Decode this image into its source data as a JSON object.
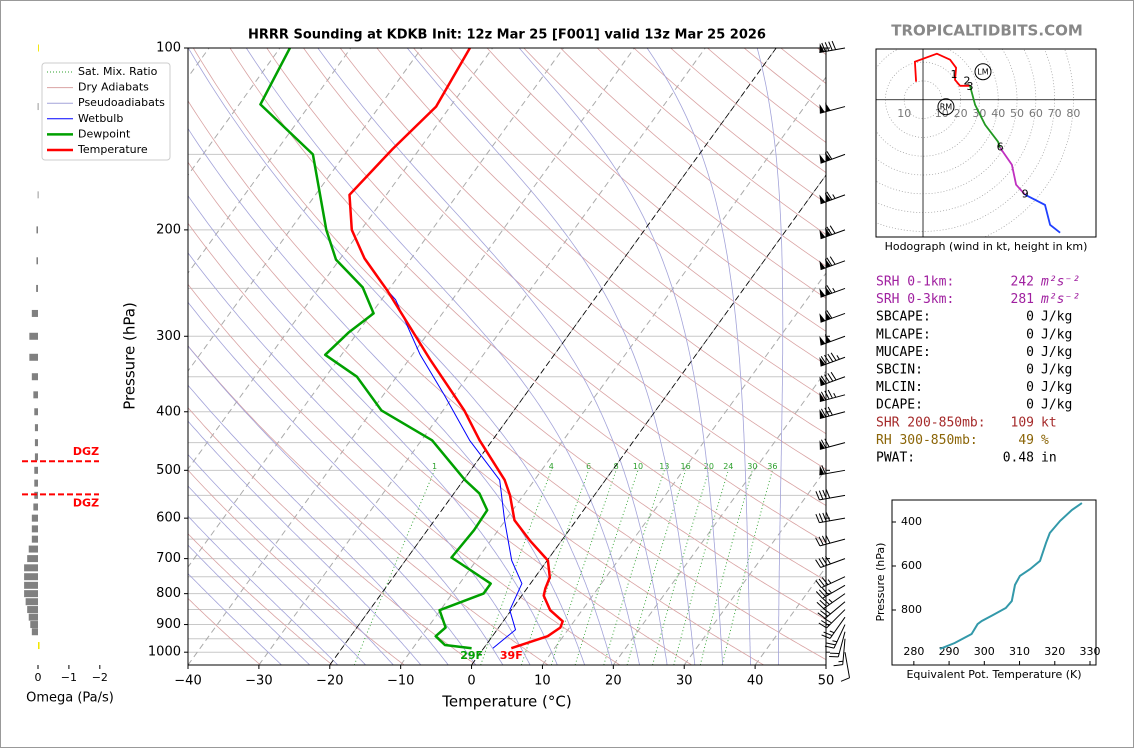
{
  "header": {
    "watermark": "TROPICALTIDBITS.COM"
  },
  "chart_data": [
    {
      "type": "skewt",
      "title": "HRRR Sounding at KDKB Init: 12z Mar 25 [F001] valid 13z Mar 25 2026",
      "x_label": "Temperature (°C)",
      "y_label": "Pressure (hPa)",
      "xlim": [
        -40,
        50
      ],
      "ylim": [
        1050,
        100
      ],
      "y_scale": "log",
      "grid": true,
      "legend": "upper left",
      "xticks": [
        {
          "value": -40,
          "label": "−40"
        },
        {
          "value": -30,
          "label": "−30"
        },
        {
          "value": -20,
          "label": "−20"
        },
        {
          "value": -10,
          "label": "−10"
        },
        0,
        10,
        20,
        30,
        40,
        50
      ],
      "yticks": [
        100,
        200,
        300,
        400,
        500,
        600,
        700,
        800,
        900,
        1000
      ],
      "highlighted_isotherms": [
        -20,
        0
      ],
      "series": [
        {
          "name": "Sat. Mix. Ratio",
          "kind": "mixing_ratio",
          "color": "#2ca02c",
          "levels": [
            1,
            4,
            6,
            8,
            10,
            13,
            16,
            20,
            24,
            30,
            36
          ]
        },
        {
          "name": "Dry Adiabats",
          "kind": "dry_adiabat",
          "color": "#d9a3a3"
        },
        {
          "name": "Pseudoadiabats",
          "kind": "moist_adiabat",
          "color": "#a3a3d9"
        },
        {
          "name": "Wetbulb",
          "kind": "profile",
          "color": "#0000ff",
          "linewidth": 1,
          "pressure": [
            985,
            918,
            852,
            770,
            705,
            605,
            519,
            446,
            376,
            322,
            261,
            252
          ],
          "values": [
            1.3,
            2.6,
            -0.2,
            -1.2,
            -5.0,
            -10.1,
            -14.9,
            -23.2,
            -31.3,
            -38.9,
            -48.0,
            -50.1
          ]
        },
        {
          "name": "Dewpoint",
          "kind": "profile",
          "color": "#00a000",
          "linewidth": 2.5,
          "surface_label": "29F",
          "pressure": [
            985,
            973,
            941,
            910,
            852,
            800,
            770,
            697,
            628,
            582,
            546,
            519,
            446,
            398,
            350,
            322,
            296,
            275,
            249,
            224,
            200,
            150,
            124,
            100
          ],
          "values": [
            -1.7,
            -5.8,
            -8.0,
            -7.5,
            -10.1,
            -5.6,
            -5.6,
            -13.8,
            -13.4,
            -13.6,
            -16.4,
            -19.8,
            -28.5,
            -38.7,
            -45.6,
            -52.3,
            -51.3,
            -49.7,
            -53.9,
            -60.5,
            -64.9,
            -74.5,
            -87.0,
            -88.6
          ]
        },
        {
          "name": "Temperature",
          "kind": "profile",
          "color": "#ff0000",
          "linewidth": 2.5,
          "surface_label": "39F",
          "pressure": [
            985,
            941,
            910,
            889,
            852,
            806,
            784,
            752,
            705,
            653,
            605,
            550,
            519,
            446,
            398,
            328,
            252,
            223,
            200,
            175,
            147,
            125,
            100
          ],
          "values": [
            3.9,
            7.8,
            8.7,
            8.4,
            5.5,
            3.1,
            2.6,
            2.1,
            0.1,
            -4.5,
            -8.7,
            -11.9,
            -14.2,
            -21.8,
            -27.0,
            -37.0,
            -50.1,
            -56.6,
            -61.3,
            -65.2,
            -63.8,
            -62.0,
            -63.2
          ]
        }
      ],
      "wind_barbs": {
        "pressure": [
          1000,
          950,
          925,
          900,
          875,
          850,
          825,
          800,
          775,
          750,
          700,
          650,
          600,
          550,
          500,
          450,
          400,
          375,
          350,
          325,
          300,
          275,
          250,
          225,
          200,
          175,
          150,
          125,
          100
        ],
        "direction": [
          170,
          185,
          195,
          205,
          215,
          225,
          230,
          235,
          240,
          245,
          250,
          255,
          260,
          260,
          260,
          255,
          255,
          255,
          250,
          250,
          250,
          250,
          250,
          250,
          250,
          250,
          250,
          255,
          260
        ],
        "speed": [
          10,
          15,
          20,
          25,
          25,
          30,
          30,
          35,
          35,
          35,
          40,
          40,
          40,
          40,
          60,
          70,
          80,
          85,
          90,
          95,
          100,
          110,
          115,
          120,
          120,
          115,
          110,
          100,
          90
        ]
      }
    },
    {
      "type": "hbar",
      "x_label": "Omega (Pa/s)",
      "xlim": [
        0.55,
        -2.2
      ],
      "ylim": [
        1050,
        100
      ],
      "y_scale": "log",
      "xticks": [
        0,
        {
          "value": -1,
          "label": "−1"
        },
        {
          "value": -2,
          "label": "−2"
        }
      ],
      "color": "#808080",
      "negative_color": "#f2e600",
      "y": [
        100,
        125,
        175,
        200,
        225,
        250,
        275,
        300,
        325,
        350,
        375,
        400,
        425,
        450,
        475,
        500,
        525,
        550,
        575,
        600,
        625,
        650,
        675,
        700,
        725,
        750,
        775,
        800,
        825,
        850,
        875,
        900,
        925,
        975
      ],
      "values": [
        -0.03,
        0.01,
        0.01,
        0.05,
        0.05,
        0.06,
        0.2,
        0.28,
        0.28,
        0.2,
        0.15,
        0.12,
        0.1,
        0.1,
        0.1,
        0.12,
        0.12,
        0.12,
        0.15,
        0.2,
        0.2,
        0.2,
        0.3,
        0.35,
        0.45,
        0.45,
        0.45,
        0.45,
        0.4,
        0.35,
        0.3,
        0.25,
        0.2,
        -0.05
      ],
      "dgz": {
        "color": "#ff0000",
        "pressure": [
          483,
          548
        ],
        "labels": [
          "DGZ",
          "DGZ"
        ]
      }
    },
    {
      "type": "hodograph",
      "caption": "Hodograph (wind in kt, height in km)",
      "xlim": [
        -25,
        92
      ],
      "ylim": [
        -73,
        27
      ],
      "rings": [
        10,
        20,
        30,
        40,
        50,
        60,
        70,
        80
      ],
      "segments": [
        {
          "color": "#ff0000",
          "u": [
            -3.7,
            -4.3,
            7.4,
            14.4,
            17.6,
            17,
            19.7,
            25
          ],
          "v": [
            9.6,
            20.2,
            24.5,
            21.3,
            17,
            10.6,
            7.4,
            7.4
          ]
        },
        {
          "color": "#229922",
          "u": [
            25,
            27.7,
            33,
            39.9,
            41
          ],
          "v": [
            7.4,
            -2.7,
            -13.3,
            -22.3,
            -25.5
          ]
        },
        {
          "color": "#c030c0",
          "u": [
            41,
            47.3,
            49.5,
            54.3
          ],
          "v": [
            -25.5,
            -34.6,
            -45.2,
            -50.5
          ]
        },
        {
          "color": "#2040ff",
          "u": [
            54.3,
            64.9,
            67.6,
            72.9
          ],
          "v": [
            -50.5,
            -55.9,
            -66.5,
            -70.7
          ]
        }
      ],
      "height_labels": [
        {
          "label": "1",
          "u": 16.5,
          "v": 13.3
        },
        {
          "label": "2",
          "u": 23.4,
          "v": 9.6
        },
        {
          "label": "3",
          "u": 25,
          "v": 6.9
        },
        {
          "label": "6",
          "u": 41,
          "v": -25.5
        },
        {
          "label": "9",
          "u": 54.3,
          "v": -50.5
        }
      ],
      "storm_motion": [
        {
          "label": "LM",
          "u": 31.9,
          "v": 14.9
        },
        {
          "label": "RM",
          "u": 12.2,
          "v": -3.7
        }
      ]
    },
    {
      "type": "line",
      "x_label": "Equivalent Pot. Temperature (K)",
      "y_label": "Pressure (hPa)",
      "color": "#3399aa",
      "xlim": [
        273.8,
        331.7
      ],
      "ylim": [
        1050,
        300
      ],
      "xticks": [
        280,
        290,
        300,
        310,
        320,
        330
      ],
      "yticks": [
        400,
        600,
        800
      ],
      "x": [
        287.4,
        291.6,
        296.4,
        298.1,
        299.3,
        302.4,
        306.1,
        307.8,
        308.7,
        310.1,
        313,
        315.8,
        317.5,
        318.6,
        321.5,
        324.9,
        327.7
      ],
      "y": [
        977,
        950,
        909,
        864,
        850,
        823,
        791,
        759,
        686,
        645,
        614,
        577,
        495,
        450,
        395,
        345,
        314
      ]
    }
  ],
  "stats": {
    "rows": [
      {
        "label": "SRH 0-1km:",
        "value": 242,
        "unit": "m²s⁻²",
        "color": "#a020a0"
      },
      {
        "label": "SRH 0-3km:",
        "value": 281,
        "unit": "m²s⁻²",
        "color": "#a020a0"
      },
      {
        "label": "SBCAPE:",
        "value": 0,
        "unit": "J/kg",
        "color": "#000000"
      },
      {
        "label": "MLCAPE:",
        "value": 0,
        "unit": "J/kg",
        "color": "#000000"
      },
      {
        "label": "MUCAPE:",
        "value": 0,
        "unit": "J/kg",
        "color": "#000000"
      },
      {
        "label": "SBCIN:",
        "value": 0,
        "unit": "J/kg",
        "color": "#000000"
      },
      {
        "label": "MLCIN:",
        "value": 0,
        "unit": "J/kg",
        "color": "#000000"
      },
      {
        "label": "DCAPE:",
        "value": 0,
        "unit": "J/kg",
        "color": "#000000"
      },
      {
        "label": "SHR 200-850mb:",
        "value": 109,
        "unit": "kt",
        "color": "#a52a2a"
      },
      {
        "label": "RH 300-850mb:",
        "value": 49,
        "unit": "%",
        "color": "#8b6508"
      },
      {
        "label": "PWAT:",
        "value": 0.48,
        "unit": "in",
        "color": "#000000"
      }
    ]
  }
}
